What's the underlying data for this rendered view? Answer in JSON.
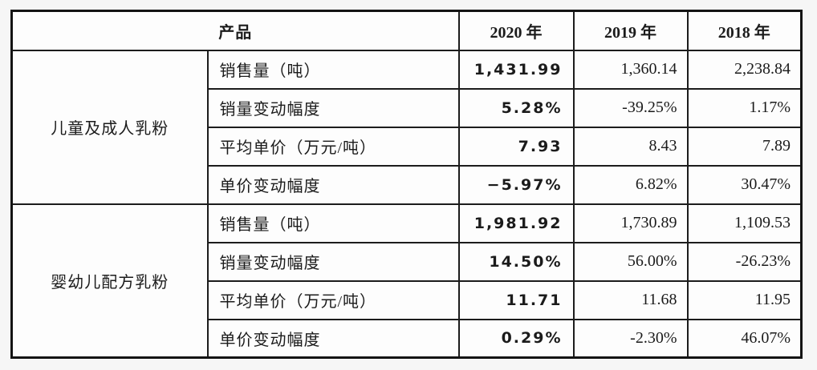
{
  "table": {
    "header": {
      "product_label": "产品",
      "year_2020": "2020 年",
      "year_2019": "2019 年",
      "year_2018": "2018 年"
    },
    "groups": [
      {
        "name": "儿童及成人乳粉",
        "rows": [
          {
            "metric": "销售量（吨）",
            "y2020": "1,431.99",
            "y2019": "1,360.14",
            "y2018": "2,238.84"
          },
          {
            "metric": "销量变动幅度",
            "y2020": "5.28%",
            "y2019": "-39.25%",
            "y2018": "1.17%"
          },
          {
            "metric": "平均单价（万元/吨）",
            "y2020": "7.93",
            "y2019": "8.43",
            "y2018": "7.89"
          },
          {
            "metric": "单价变动幅度",
            "y2020": "−5.97%",
            "y2019": "6.82%",
            "y2018": "30.47%"
          }
        ]
      },
      {
        "name": "婴幼儿配方乳粉",
        "rows": [
          {
            "metric": "销售量（吨）",
            "y2020": "1,981.92",
            "y2019": "1,730.89",
            "y2018": "1,109.53"
          },
          {
            "metric": "销量变动幅度",
            "y2020": "14.50%",
            "y2019": "56.00%",
            "y2018": "-26.23%"
          },
          {
            "metric": "平均单价（万元/吨）",
            "y2020": "11.71",
            "y2019": "11.68",
            "y2018": "11.95"
          },
          {
            "metric": "单价变动幅度",
            "y2020": "0.29%",
            "y2019": "-2.30%",
            "y2018": "46.07%"
          }
        ]
      }
    ],
    "colors": {
      "border": "#1c1c1c",
      "text": "#1b1b1b",
      "cell_background": "#fdfdfd",
      "page_background": "#f6f6f6"
    }
  }
}
